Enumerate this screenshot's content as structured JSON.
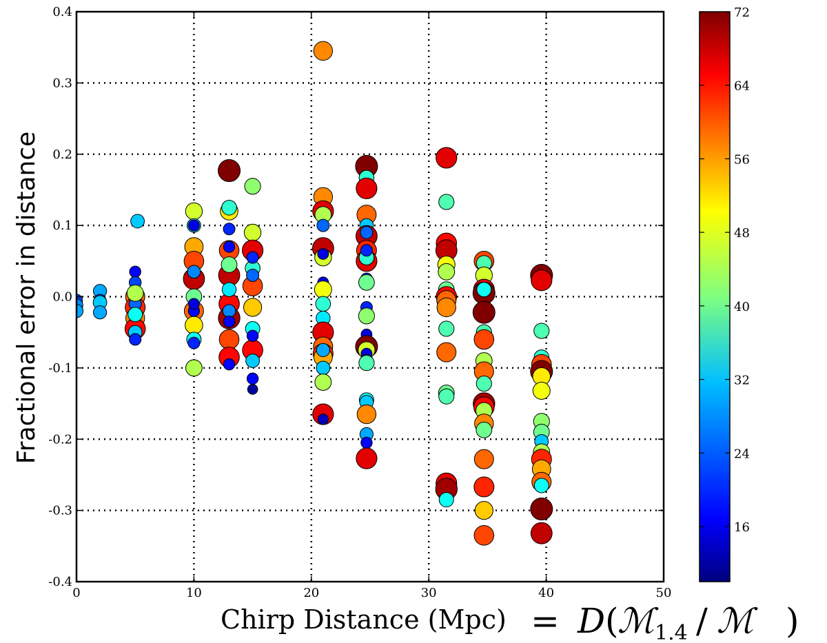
{
  "chart_data": {
    "type": "scatter",
    "xlabel": "Chirp Distance (Mpc)",
    "xlabel_math": {
      "D": "D",
      "open": "(",
      "M": "ℳ",
      "sub": "1.4",
      "slash": "/",
      "close": ")",
      "eq": "="
    },
    "ylabel": "Fractional error in distance",
    "xlim": [
      0,
      50
    ],
    "ylim": [
      -0.4,
      0.4
    ],
    "xticks": [
      0,
      10,
      20,
      30,
      40,
      50
    ],
    "xtick_labels": [
      "0",
      "10",
      "20",
      "30",
      "40",
      "50"
    ],
    "yticks": [
      -0.4,
      -0.3,
      -0.2,
      -0.1,
      0.0,
      0.1,
      0.2,
      0.3,
      0.4
    ],
    "ytick_labels": [
      "-0.4",
      "-0.3",
      "-0.2",
      "-0.1",
      "0.0",
      "0.1",
      "0.2",
      "0.3",
      "0.4"
    ],
    "grid": true,
    "colorbar": {
      "colormap": "jet",
      "range": [
        10,
        72
      ],
      "ticks": [
        16,
        24,
        32,
        40,
        48,
        56,
        64,
        72
      ],
      "tick_labels": [
        "16",
        "24",
        "32",
        "40",
        "48",
        "56",
        "64",
        "72"
      ]
    },
    "points": [
      {
        "x": 0,
        "y": -0.005,
        "c": 22
      },
      {
        "x": 0,
        "y": -0.012,
        "c": 26
      },
      {
        "x": 0,
        "y": -0.02,
        "c": 28
      },
      {
        "x": 2,
        "y": 0.008,
        "c": 28
      },
      {
        "x": 2,
        "y": -0.005,
        "c": 22
      },
      {
        "x": 2,
        "y": -0.008,
        "c": 30
      },
      {
        "x": 2,
        "y": -0.022,
        "c": 28
      },
      {
        "x": 5,
        "y": 0.0,
        "c": 58
      },
      {
        "x": 5,
        "y": -0.015,
        "c": 62
      },
      {
        "x": 5,
        "y": -0.03,
        "c": 56
      },
      {
        "x": 5,
        "y": -0.045,
        "c": 64
      },
      {
        "x": 5,
        "y": 0.035,
        "c": 18
      },
      {
        "x": 5,
        "y": 0.02,
        "c": 22
      },
      {
        "x": 5,
        "y": -0.01,
        "c": 24
      },
      {
        "x": 5,
        "y": -0.025,
        "c": 34
      },
      {
        "x": 5,
        "y": -0.05,
        "c": 30
      },
      {
        "x": 5,
        "y": -0.06,
        "c": 20
      },
      {
        "x": 5.2,
        "y": 0.106,
        "c": 30
      },
      {
        "x": 5,
        "y": 0.005,
        "c": 44
      },
      {
        "x": 10,
        "y": 0.12,
        "c": 46
      },
      {
        "x": 10,
        "y": 0.1,
        "c": 30
      },
      {
        "x": 10,
        "y": 0.07,
        "c": 54
      },
      {
        "x": 10,
        "y": 0.05,
        "c": 60
      },
      {
        "x": 10,
        "y": 0.025,
        "c": 68
      },
      {
        "x": 10,
        "y": 0.0,
        "c": 40
      },
      {
        "x": 10,
        "y": -0.02,
        "c": 58
      },
      {
        "x": 10,
        "y": -0.04,
        "c": 50
      },
      {
        "x": 10,
        "y": -0.06,
        "c": 34
      },
      {
        "x": 10,
        "y": -0.1,
        "c": 44
      },
      {
        "x": 10,
        "y": 0.035,
        "c": 26
      },
      {
        "x": 10,
        "y": -0.02,
        "c": 18
      },
      {
        "x": 10,
        "y": -0.065,
        "c": 20
      },
      {
        "x": 10,
        "y": 0.1,
        "c": 16
      },
      {
        "x": 10,
        "y": -0.01,
        "c": 16
      },
      {
        "x": 13,
        "y": 0.177,
        "c": 72
      },
      {
        "x": 13,
        "y": 0.12,
        "c": 50
      },
      {
        "x": 13,
        "y": 0.065,
        "c": 60
      },
      {
        "x": 13,
        "y": 0.03,
        "c": 68
      },
      {
        "x": 13,
        "y": -0.01,
        "c": 64
      },
      {
        "x": 13,
        "y": -0.03,
        "c": 70
      },
      {
        "x": 13,
        "y": -0.06,
        "c": 60
      },
      {
        "x": 13,
        "y": -0.085,
        "c": 64
      },
      {
        "x": 13,
        "y": 0.125,
        "c": 36
      },
      {
        "x": 13,
        "y": 0.095,
        "c": 20
      },
      {
        "x": 13,
        "y": 0.07,
        "c": 18
      },
      {
        "x": 13,
        "y": 0.045,
        "c": 40
      },
      {
        "x": 13,
        "y": 0.01,
        "c": 32
      },
      {
        "x": 13,
        "y": -0.02,
        "c": 26
      },
      {
        "x": 13,
        "y": -0.035,
        "c": 18
      },
      {
        "x": 13,
        "y": -0.095,
        "c": 18
      },
      {
        "x": 15,
        "y": 0.155,
        "c": 42
      },
      {
        "x": 15,
        "y": 0.09,
        "c": 46
      },
      {
        "x": 15,
        "y": 0.065,
        "c": 66
      },
      {
        "x": 15,
        "y": 0.04,
        "c": 36
      },
      {
        "x": 15,
        "y": 0.015,
        "c": 60
      },
      {
        "x": 15,
        "y": -0.015,
        "c": 52
      },
      {
        "x": 15,
        "y": -0.045,
        "c": 34
      },
      {
        "x": 15,
        "y": -0.075,
        "c": 64
      },
      {
        "x": 15,
        "y": -0.09,
        "c": 30
      },
      {
        "x": 15,
        "y": 0.055,
        "c": 20
      },
      {
        "x": 15,
        "y": 0.03,
        "c": 24
      },
      {
        "x": 15,
        "y": -0.055,
        "c": 18
      },
      {
        "x": 15,
        "y": -0.115,
        "c": 18
      },
      {
        "x": 15,
        "y": -0.13,
        "c": 12
      },
      {
        "x": 21,
        "y": 0.345,
        "c": 56
      },
      {
        "x": 21,
        "y": 0.14,
        "c": 56
      },
      {
        "x": 21,
        "y": 0.12,
        "c": 66
      },
      {
        "x": 21,
        "y": 0.115,
        "c": 44
      },
      {
        "x": 21,
        "y": 0.068,
        "c": 68
      },
      {
        "x": 21,
        "y": 0.055,
        "c": 46
      },
      {
        "x": 21,
        "y": 0.1,
        "c": 24
      },
      {
        "x": 21,
        "y": 0.06,
        "c": 16
      },
      {
        "x": 21,
        "y": 0.02,
        "c": 16
      },
      {
        "x": 21,
        "y": 0.01,
        "c": 48
      },
      {
        "x": 21,
        "y": -0.01,
        "c": 36
      },
      {
        "x": 21,
        "y": -0.03,
        "c": 32
      },
      {
        "x": 21,
        "y": -0.05,
        "c": 66
      },
      {
        "x": 21,
        "y": -0.07,
        "c": 58
      },
      {
        "x": 21,
        "y": -0.08,
        "c": 62
      },
      {
        "x": 21,
        "y": -0.085,
        "c": 54
      },
      {
        "x": 21,
        "y": -0.075,
        "c": 28
      },
      {
        "x": 21,
        "y": -0.1,
        "c": 30
      },
      {
        "x": 21,
        "y": -0.12,
        "c": 44
      },
      {
        "x": 21,
        "y": -0.165,
        "c": 66
      },
      {
        "x": 21,
        "y": -0.172,
        "c": 14
      },
      {
        "x": 24.7,
        "y": 0.183,
        "c": 72
      },
      {
        "x": 24.7,
        "y": 0.167,
        "c": 36
      },
      {
        "x": 24.7,
        "y": 0.152,
        "c": 66
      },
      {
        "x": 24.7,
        "y": 0.115,
        "c": 58
      },
      {
        "x": 24.7,
        "y": 0.1,
        "c": 30
      },
      {
        "x": 24.7,
        "y": 0.085,
        "c": 68
      },
      {
        "x": 24.7,
        "y": 0.065,
        "c": 62
      },
      {
        "x": 24.7,
        "y": 0.05,
        "c": 66
      },
      {
        "x": 24.7,
        "y": 0.055,
        "c": 36
      },
      {
        "x": 24.7,
        "y": 0.09,
        "c": 24
      },
      {
        "x": 24.7,
        "y": 0.065,
        "c": 20
      },
      {
        "x": 24.7,
        "y": 0.025,
        "c": 20
      },
      {
        "x": 24.7,
        "y": 0.02,
        "c": 40
      },
      {
        "x": 24.7,
        "y": -0.015,
        "c": 20
      },
      {
        "x": 24.7,
        "y": -0.025,
        "c": 16
      },
      {
        "x": 24.7,
        "y": -0.027,
        "c": 42
      },
      {
        "x": 24.7,
        "y": -0.053,
        "c": 16
      },
      {
        "x": 24.7,
        "y": -0.07,
        "c": 72
      },
      {
        "x": 24.7,
        "y": -0.075,
        "c": 46
      },
      {
        "x": 24.7,
        "y": -0.08,
        "c": 16
      },
      {
        "x": 24.7,
        "y": -0.09,
        "c": 26
      },
      {
        "x": 24.7,
        "y": -0.093,
        "c": 38
      },
      {
        "x": 24.7,
        "y": -0.145,
        "c": 34
      },
      {
        "x": 24.7,
        "y": -0.148,
        "c": 30
      },
      {
        "x": 24.7,
        "y": -0.165,
        "c": 56
      },
      {
        "x": 24.7,
        "y": -0.193,
        "c": 28
      },
      {
        "x": 24.7,
        "y": -0.205,
        "c": 18
      },
      {
        "x": 24.7,
        "y": -0.227,
        "c": 66
      },
      {
        "x": 31.5,
        "y": 0.195,
        "c": 66
      },
      {
        "x": 31.5,
        "y": 0.133,
        "c": 38
      },
      {
        "x": 31.5,
        "y": 0.075,
        "c": 64
      },
      {
        "x": 31.5,
        "y": 0.065,
        "c": 68
      },
      {
        "x": 31.5,
        "y": 0.045,
        "c": 48
      },
      {
        "x": 31.5,
        "y": 0.035,
        "c": 44
      },
      {
        "x": 31.5,
        "y": 0.01,
        "c": 40
      },
      {
        "x": 31.5,
        "y": 0.0,
        "c": 64
      },
      {
        "x": 31.5,
        "y": -0.005,
        "c": 58
      },
      {
        "x": 31.5,
        "y": -0.015,
        "c": 56
      },
      {
        "x": 31.5,
        "y": -0.045,
        "c": 38
      },
      {
        "x": 31.5,
        "y": -0.078,
        "c": 58
      },
      {
        "x": 31.5,
        "y": -0.135,
        "c": 40
      },
      {
        "x": 31.5,
        "y": -0.14,
        "c": 38
      },
      {
        "x": 31.5,
        "y": -0.262,
        "c": 66
      },
      {
        "x": 31.5,
        "y": -0.27,
        "c": 70
      },
      {
        "x": 31.5,
        "y": -0.285,
        "c": 34
      },
      {
        "x": 34.7,
        "y": 0.05,
        "c": 60
      },
      {
        "x": 34.7,
        "y": 0.047,
        "c": 38
      },
      {
        "x": 34.7,
        "y": 0.03,
        "c": 46
      },
      {
        "x": 34.7,
        "y": 0.01,
        "c": 66
      },
      {
        "x": 34.7,
        "y": 0.005,
        "c": 72
      },
      {
        "x": 34.7,
        "y": 0.01,
        "c": 34
      },
      {
        "x": 34.7,
        "y": -0.022,
        "c": 72
      },
      {
        "x": 34.7,
        "y": -0.05,
        "c": 38
      },
      {
        "x": 34.7,
        "y": -0.06,
        "c": 60
      },
      {
        "x": 34.7,
        "y": -0.09,
        "c": 44
      },
      {
        "x": 34.7,
        "y": -0.105,
        "c": 58
      },
      {
        "x": 34.7,
        "y": -0.122,
        "c": 38
      },
      {
        "x": 34.7,
        "y": -0.15,
        "c": 70
      },
      {
        "x": 34.7,
        "y": -0.155,
        "c": 64
      },
      {
        "x": 34.7,
        "y": -0.16,
        "c": 44
      },
      {
        "x": 34.7,
        "y": -0.178,
        "c": 56
      },
      {
        "x": 34.7,
        "y": -0.187,
        "c": 40
      },
      {
        "x": 34.7,
        "y": -0.228,
        "c": 58
      },
      {
        "x": 34.7,
        "y": -0.267,
        "c": 62
      },
      {
        "x": 34.7,
        "y": -0.3,
        "c": 52
      },
      {
        "x": 34.7,
        "y": -0.335,
        "c": 60
      },
      {
        "x": 39.6,
        "y": 0.03,
        "c": 72
      },
      {
        "x": 39.6,
        "y": 0.023,
        "c": 66
      },
      {
        "x": 39.6,
        "y": -0.048,
        "c": 38
      },
      {
        "x": 39.6,
        "y": -0.085,
        "c": 36
      },
      {
        "x": 39.6,
        "y": -0.095,
        "c": 60
      },
      {
        "x": 39.6,
        "y": -0.105,
        "c": 72
      },
      {
        "x": 39.6,
        "y": -0.112,
        "c": 50
      },
      {
        "x": 39.6,
        "y": -0.132,
        "c": 48
      },
      {
        "x": 39.6,
        "y": -0.175,
        "c": 42
      },
      {
        "x": 39.6,
        "y": -0.19,
        "c": 40
      },
      {
        "x": 39.6,
        "y": -0.203,
        "c": 30
      },
      {
        "x": 39.6,
        "y": -0.218,
        "c": 44
      },
      {
        "x": 39.6,
        "y": -0.228,
        "c": 62
      },
      {
        "x": 39.6,
        "y": -0.242,
        "c": 54
      },
      {
        "x": 39.6,
        "y": -0.26,
        "c": 58
      },
      {
        "x": 39.6,
        "y": -0.265,
        "c": 34
      },
      {
        "x": 39.6,
        "y": -0.298,
        "c": 72
      },
      {
        "x": 39.6,
        "y": -0.332,
        "c": 68
      }
    ]
  }
}
